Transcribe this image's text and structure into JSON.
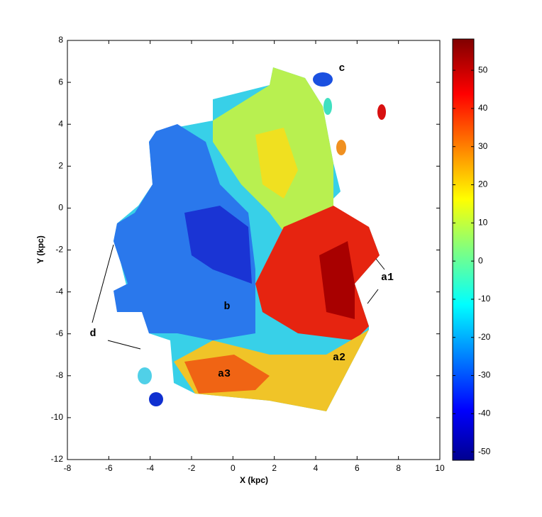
{
  "chart_data": {
    "type": "heatmap",
    "xlabel": "X (kpc)",
    "ylabel": "Y (kpc)",
    "xlim": [
      -8,
      10
    ],
    "xticks": [
      -8,
      -6,
      -4,
      -2,
      0,
      2,
      4,
      6,
      8,
      10
    ],
    "ylim": [
      -12,
      8
    ],
    "yticks": [
      -12,
      -10,
      -8,
      -6,
      -4,
      -2,
      0,
      2,
      4,
      6,
      8
    ],
    "colorbar": {
      "clim": [
        -52.2,
        58.2
      ],
      "ticks": [
        -50,
        -40,
        -30,
        -20,
        -10,
        0,
        10,
        20,
        30,
        40,
        50
      ]
    },
    "annotations": [
      "a1",
      "a2",
      "a3",
      "b",
      "c",
      "d"
    ]
  }
}
